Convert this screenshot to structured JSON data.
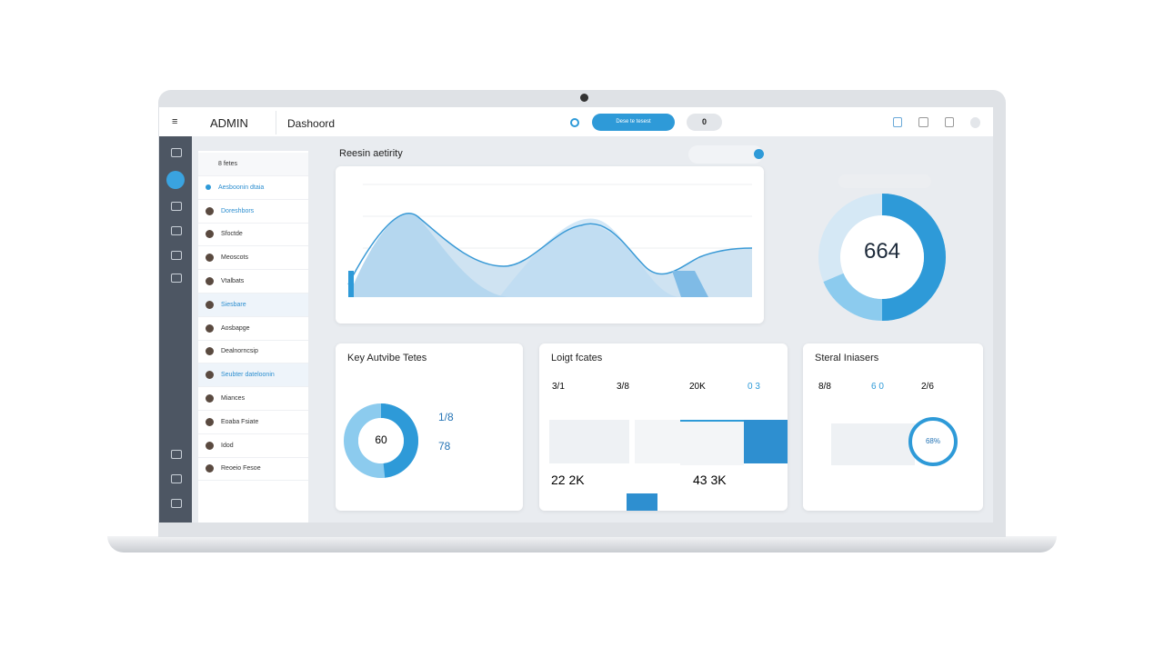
{
  "header": {
    "brand": "ADMIN",
    "page": "Dashoord",
    "button": "Dese te tesest",
    "pill": "0"
  },
  "activity": {
    "title": "Reesin aetirity"
  },
  "gauge": {
    "value": "664"
  },
  "sidebar_list": [
    "8 fetes",
    "Aesboonin dtaia",
    "Doreshbors",
    "Sfoctde",
    "Meoscots",
    "Vtalbats",
    "Siesbare",
    "Aosbapge",
    "Dealnorncsip",
    "Seubter dateloonin",
    "Miances",
    "Eoaba Fsiate",
    "Idod",
    "Reoeio Fesoe"
  ],
  "cards": [
    {
      "title": "Key Autvibe Tetes",
      "donut": "60",
      "stats": [
        "1/8",
        "78"
      ]
    },
    {
      "title": "Loigt fcates",
      "stats": [
        "3/1",
        "3/8",
        "20K",
        "0 3"
      ],
      "big": [
        "22 2K",
        "43 3K"
      ]
    },
    {
      "title": "Steral Iniasers",
      "stats": [
        "8/8",
        "6 0",
        "2/6"
      ],
      "ring": "68%"
    }
  ]
}
